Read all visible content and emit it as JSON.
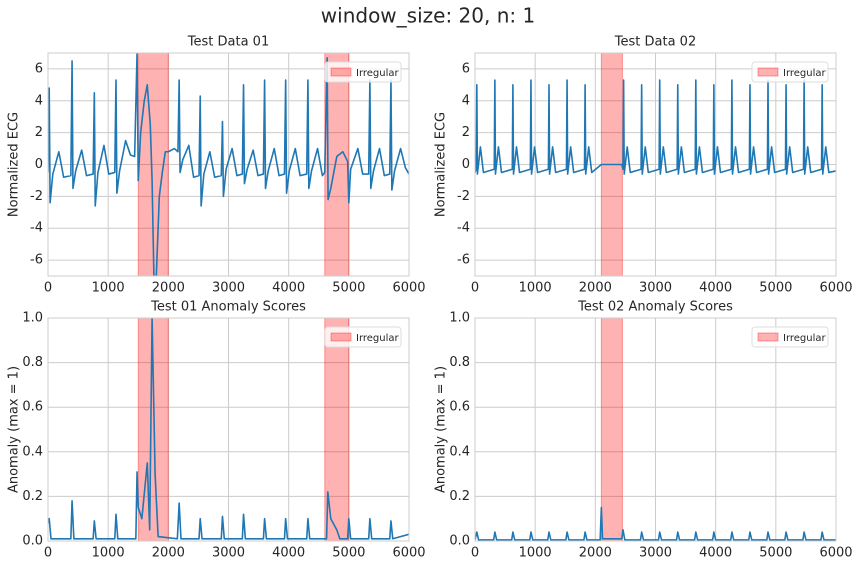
{
  "title": "window_size: 20, n: 1",
  "chart_data": [
    {
      "type": "line",
      "title": "Test Data 01",
      "ylabel": "Normalized ECG",
      "color": "#1f77b4",
      "x": [
        0,
        20,
        35,
        80,
        180,
        260,
        380,
        400,
        415,
        460,
        560,
        640,
        750,
        770,
        785,
        830,
        930,
        1010,
        1110,
        1130,
        1145,
        1190,
        1290,
        1370,
        1440,
        1480,
        1500,
        1540,
        1600,
        1650,
        1700,
        1730,
        1760,
        1800,
        1850,
        1900,
        1950,
        2000,
        2100,
        2160,
        2180,
        2195,
        2240,
        2340,
        2420,
        2510,
        2530,
        2545,
        2590,
        2690,
        2770,
        2880,
        2900,
        2915,
        2960,
        3060,
        3140,
        3230,
        3250,
        3265,
        3310,
        3410,
        3490,
        3580,
        3600,
        3615,
        3660,
        3760,
        3840,
        3930,
        3950,
        3965,
        4010,
        4110,
        4190,
        4300,
        4320,
        4335,
        4380,
        4480,
        4560,
        4600,
        4640,
        4655,
        4700,
        4750,
        4800,
        4900,
        4980,
        5000,
        5030,
        5150,
        5230,
        5330,
        5350,
        5365,
        5410,
        5510,
        5590,
        5680,
        5700,
        5715,
        5760,
        5860,
        5940,
        6000
      ],
      "values": [
        -0.5,
        4.8,
        -2.4,
        -0.6,
        0.8,
        -0.8,
        -0.7,
        6.5,
        -1.5,
        -0.4,
        0.9,
        -0.7,
        -0.6,
        4.5,
        -2.6,
        -0.5,
        1.2,
        -0.6,
        -0.5,
        5.3,
        -1.8,
        -0.4,
        1.5,
        0.6,
        0.5,
        7,
        -1,
        2,
        4,
        5,
        2.5,
        -1,
        -7,
        -7,
        -2,
        -0.5,
        0.8,
        0.8,
        1,
        0.8,
        5.3,
        -0.5,
        0.3,
        1.2,
        -0.8,
        -0.7,
        4.3,
        -2.6,
        -0.6,
        0.8,
        -0.8,
        -0.7,
        2.7,
        -2,
        -0.3,
        1,
        -0.7,
        -0.6,
        5,
        -1.2,
        -0.3,
        0.9,
        -0.7,
        -0.6,
        5.3,
        -1.5,
        -0.4,
        1,
        -0.7,
        -0.6,
        5.3,
        -1.8,
        -0.4,
        1,
        -0.7,
        -0.6,
        5.3,
        -1.5,
        -0.4,
        1,
        -0.7,
        -0.5,
        6.7,
        -2.2,
        -1.5,
        -0.5,
        0.5,
        0.8,
        0.2,
        -2.4,
        -0.3,
        1,
        -0.6,
        -0.6,
        5.3,
        -1.5,
        -0.4,
        1,
        -0.7,
        -0.6,
        5.3,
        -1.6,
        -0.4,
        1,
        -0.2,
        -0.6
      ],
      "spans": {
        "name": "Irregular",
        "color": "#ff0000",
        "ranges": [
          [
            1500,
            2000
          ],
          [
            4600,
            5000
          ]
        ]
      },
      "legend": "upper right",
      "grid": true,
      "xlim": [
        0,
        6000
      ],
      "xticks": [
        0,
        1000,
        2000,
        3000,
        4000,
        5000,
        6000
      ],
      "ylim": [
        -7,
        7
      ],
      "yticks": [
        -6,
        -4,
        -2,
        0,
        2,
        4,
        6
      ]
    },
    {
      "type": "line",
      "title": "Test Data 02",
      "ylabel": "Normalized ECG",
      "color": "#1f77b4",
      "x": [
        0,
        20,
        30,
        40,
        90,
        140,
        320,
        330,
        340,
        390,
        440,
        620,
        630,
        640,
        690,
        740,
        920,
        930,
        940,
        990,
        1040,
        1220,
        1230,
        1240,
        1290,
        1340,
        1520,
        1530,
        1540,
        1590,
        1640,
        1820,
        1830,
        1840,
        1890,
        1940,
        2100,
        2440,
        2460,
        2470,
        2480,
        2530,
        2580,
        2760,
        2770,
        2780,
        2830,
        2880,
        3060,
        3070,
        3080,
        3130,
        3180,
        3360,
        3370,
        3380,
        3430,
        3480,
        3660,
        3670,
        3680,
        3730,
        3780,
        3960,
        3970,
        3980,
        4030,
        4080,
        4260,
        4270,
        4280,
        4330,
        4380,
        4560,
        4570,
        4580,
        4630,
        4680,
        4860,
        4870,
        4880,
        4930,
        4980,
        5160,
        5170,
        5180,
        5230,
        5280,
        5460,
        5470,
        5480,
        5530,
        5580,
        5760,
        5770,
        5780,
        5830,
        5880,
        6000
      ],
      "values": [
        -0.5,
        -0.3,
        5,
        -0.6,
        1.1,
        -0.5,
        -0.3,
        5.3,
        -0.6,
        1.1,
        -0.5,
        -0.3,
        5,
        -0.6,
        1.1,
        -0.5,
        -0.3,
        5.3,
        -0.6,
        1.1,
        -0.5,
        -0.3,
        5,
        -0.6,
        1.1,
        -0.5,
        -0.3,
        5.3,
        -0.6,
        1.1,
        -0.5,
        -0.3,
        5,
        -0.6,
        1.1,
        -0.5,
        0,
        0,
        -0.3,
        5.3,
        -0.6,
        1.1,
        -0.5,
        -0.3,
        5,
        -0.6,
        1.1,
        -0.5,
        -0.3,
        5.3,
        -0.6,
        1.1,
        -0.5,
        -0.3,
        5,
        -0.6,
        1.1,
        -0.5,
        -0.3,
        5.3,
        -0.6,
        1.1,
        -0.5,
        -0.3,
        5,
        -0.6,
        1.1,
        -0.5,
        -0.3,
        5.3,
        -0.6,
        1.1,
        -0.5,
        -0.3,
        5,
        -0.6,
        1.1,
        -0.5,
        -0.3,
        5.3,
        -0.6,
        1.1,
        -0.5,
        -0.3,
        5,
        -0.6,
        1.1,
        -0.5,
        -0.3,
        5.3,
        -0.6,
        1.1,
        -0.5,
        -0.3,
        5,
        -0.6,
        1.1,
        -0.5,
        -0.4
      ],
      "spans": {
        "name": "Irregular",
        "color": "#ff0000",
        "ranges": [
          [
            2100,
            2450
          ]
        ]
      },
      "legend": "upper right",
      "grid": true,
      "xlim": [
        0,
        6000
      ],
      "xticks": [
        0,
        1000,
        2000,
        3000,
        4000,
        5000,
        6000
      ],
      "ylim": [
        -7,
        7
      ],
      "yticks": [
        -6,
        -4,
        -2,
        0,
        2,
        4,
        6
      ]
    },
    {
      "type": "line",
      "title": "Test 01 Anomaly Scores",
      "ylabel": "Anomaly (max = 1)",
      "color": "#1f77b4",
      "x": [
        0,
        20,
        50,
        380,
        400,
        430,
        750,
        770,
        800,
        1110,
        1130,
        1160,
        1460,
        1480,
        1500,
        1560,
        1650,
        1690,
        1730,
        1780,
        1830,
        2150,
        2180,
        2210,
        2510,
        2530,
        2560,
        2880,
        2900,
        2930,
        3230,
        3250,
        3280,
        3580,
        3600,
        3630,
        3930,
        3950,
        3980,
        4300,
        4320,
        4350,
        4630,
        4650,
        4700,
        4800,
        4850,
        4980,
        5000,
        5030,
        5330,
        5350,
        5380,
        5680,
        5700,
        5730,
        6000
      ],
      "values": [
        0.08,
        0.1,
        0.01,
        0.01,
        0.18,
        0.01,
        0.01,
        0.09,
        0.01,
        0.01,
        0.12,
        0.01,
        0.01,
        0.31,
        0.15,
        0.1,
        0.35,
        0.05,
        1.0,
        0.3,
        0.02,
        0.01,
        0.17,
        0.01,
        0.01,
        0.1,
        0.01,
        0.01,
        0.11,
        0.01,
        0.01,
        0.12,
        0.01,
        0.01,
        0.1,
        0.01,
        0.01,
        0.1,
        0.01,
        0.01,
        0.1,
        0.01,
        0.01,
        0.22,
        0.1,
        0.05,
        0.01,
        0.01,
        0.1,
        0.01,
        0.01,
        0.1,
        0.01,
        0.01,
        0.09,
        0.01,
        0.03
      ],
      "spans": {
        "name": "Irregular",
        "color": "#ff0000",
        "ranges": [
          [
            1500,
            2000
          ],
          [
            4600,
            5000
          ]
        ]
      },
      "legend": "upper right",
      "grid": true,
      "xlim": [
        0,
        6000
      ],
      "xticks": [
        0,
        1000,
        2000,
        3000,
        4000,
        5000,
        6000
      ],
      "ylim": [
        0,
        1
      ],
      "yticks": [
        {
          "value": 0,
          "label": "0.0"
        },
        0.2,
        0.4,
        0.6,
        0.8,
        {
          "value": 1,
          "label": "1.0"
        }
      ]
    },
    {
      "type": "line",
      "title": "Test 02 Anomaly Scores",
      "ylabel": "Anomaly (max = 1)",
      "color": "#1f77b4",
      "x": [
        0,
        30,
        60,
        310,
        330,
        360,
        610,
        630,
        660,
        910,
        930,
        960,
        1210,
        1230,
        1260,
        1510,
        1530,
        1560,
        1810,
        1830,
        1860,
        2080,
        2100,
        2120,
        2440,
        2460,
        2490,
        2750,
        2770,
        2800,
        3050,
        3070,
        3100,
        3350,
        3370,
        3400,
        3650,
        3670,
        3700,
        3950,
        3970,
        4000,
        4250,
        4270,
        4300,
        4550,
        4570,
        4600,
        4850,
        4870,
        4900,
        5150,
        5170,
        5200,
        5450,
        5470,
        5500,
        5750,
        5770,
        5800,
        6000
      ],
      "values": [
        0.005,
        0.04,
        0.005,
        0.005,
        0.04,
        0.005,
        0.005,
        0.04,
        0.005,
        0.005,
        0.04,
        0.005,
        0.005,
        0.04,
        0.005,
        0.005,
        0.04,
        0.005,
        0.005,
        0.04,
        0.005,
        0.005,
        0.15,
        0.01,
        0.01,
        0.05,
        0.005,
        0.005,
        0.04,
        0.005,
        0.005,
        0.04,
        0.005,
        0.005,
        0.04,
        0.005,
        0.005,
        0.04,
        0.005,
        0.005,
        0.04,
        0.005,
        0.005,
        0.04,
        0.005,
        0.005,
        0.04,
        0.005,
        0.005,
        0.04,
        0.005,
        0.005,
        0.04,
        0.005,
        0.005,
        0.04,
        0.005,
        0.005,
        0.04,
        0.005,
        0.005
      ],
      "spans": {
        "name": "Irregular",
        "color": "#ff0000",
        "ranges": [
          [
            2100,
            2450
          ]
        ]
      },
      "legend": "upper right",
      "grid": true,
      "xlim": [
        0,
        6000
      ],
      "xticks": [
        0,
        1000,
        2000,
        3000,
        4000,
        5000,
        6000
      ],
      "ylim": [
        0,
        1
      ],
      "yticks": [
        {
          "value": 0,
          "label": "0.0"
        },
        0.2,
        0.4,
        0.6,
        0.8,
        {
          "value": 1,
          "label": "1.0"
        }
      ]
    }
  ]
}
